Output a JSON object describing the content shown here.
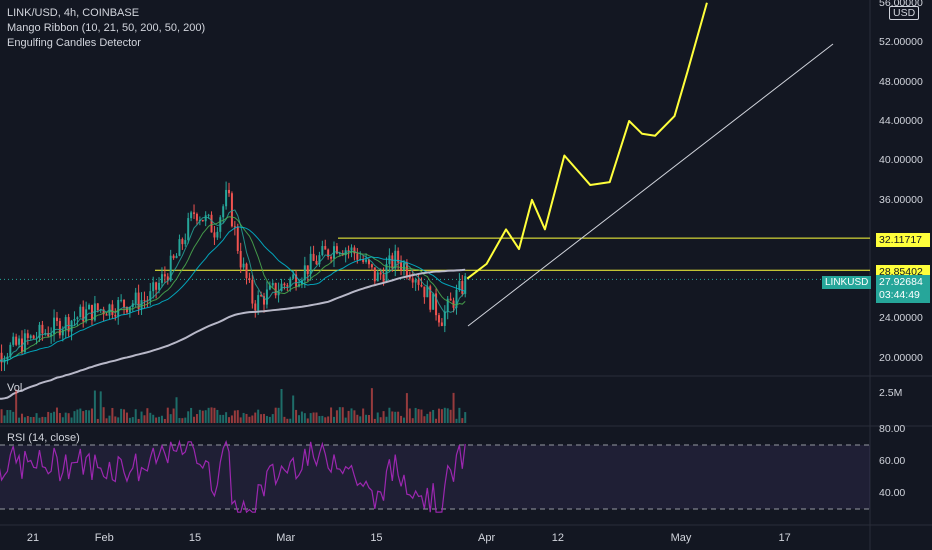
{
  "header": {
    "symbol_line": "LINK/USD, 4h, COINBASE",
    "indicator_1": "Mango Ribbon (10, 21, 50, 200, 50, 200)",
    "indicator_2": "Engulfing Candles Detector"
  },
  "currency": "USD",
  "volume_pane": {
    "label": "Vol",
    "scale_label": "2.5M"
  },
  "rsi_pane": {
    "label": "RSI (14, close)",
    "ticks": [
      "80.00",
      "60.00",
      "40.00"
    ]
  },
  "price_axis": {
    "ticks": [
      "56.00000",
      "52.00000",
      "48.00000",
      "44.00000",
      "40.00000",
      "36.00000",
      "24.00000",
      "20.00000"
    ]
  },
  "time_axis": {
    "ticks": [
      "21",
      "Feb",
      "15",
      "Mar",
      "15",
      "Apr",
      "12",
      "May",
      "17"
    ]
  },
  "price_tags": {
    "resistance_upper": "32.11717",
    "resistance_lower": "28.85402",
    "symbol": "LINKUSD",
    "last_price": "27.92684",
    "countdown": "03:44:49"
  },
  "colors": {
    "background": "#131722",
    "up": "#26a69a",
    "down": "#ef5350",
    "drawing": "#ffff3b",
    "ma200": "#b8b8c8",
    "rsi": "#9c27b0"
  },
  "chart_data": {
    "type": "line",
    "title": "LINK/USD, 4h, COINBASE",
    "ylim": [
      17.5,
      56
    ],
    "y_scale": "linear",
    "horizontal_levels": [
      32.11717,
      28.85402
    ],
    "last_price": 27.92684,
    "series": [
      {
        "name": "LINK/USD",
        "x": [
          "Jan 13",
          "Jan 21",
          "Jan 29",
          "Feb 1",
          "Feb 8",
          "Feb 12",
          "Feb 15",
          "Feb 18",
          "Feb 20",
          "Feb 22",
          "Feb 24",
          "Mar 1",
          "Mar 5",
          "Mar 9",
          "Mar 12",
          "Mar 15",
          "Mar 18",
          "Mar 21",
          "Mar 25",
          "Mar 29"
        ],
        "values": [
          19.5,
          22.0,
          24.5,
          25.0,
          26.0,
          30.0,
          35.0,
          33.0,
          36.5,
          30.0,
          25.5,
          27.5,
          29.5,
          31.5,
          30.5,
          28.0,
          30.0,
          28.5,
          24.0,
          27.9
        ]
      },
      {
        "name": "Projection",
        "x": [
          "Mar 29",
          "Apr 1",
          "Apr 4",
          "Apr 6",
          "Apr 8",
          "Apr 10",
          "Apr 13",
          "Apr 17",
          "Apr 20",
          "Apr 23",
          "Apr 25",
          "Apr 27",
          "Apr 30",
          "May 2",
          "May 5"
        ],
        "values": [
          28.0,
          29.5,
          33.0,
          31.0,
          36.0,
          33.0,
          40.5,
          37.5,
          37.8,
          44.0,
          42.7,
          42.5,
          44.5,
          49.0,
          56.0
        ]
      }
    ],
    "rsi": {
      "ylim": [
        20,
        100
      ],
      "bands": [
        70,
        30
      ]
    }
  }
}
